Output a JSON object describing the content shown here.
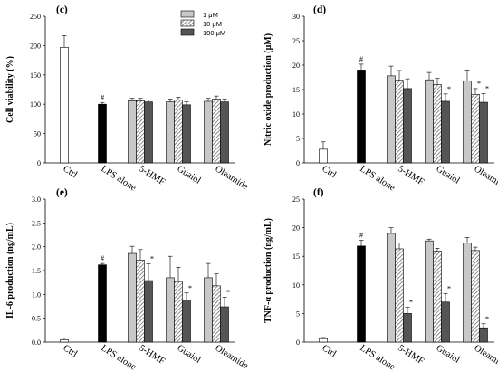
{
  "legend": {
    "items": [
      {
        "key": "low",
        "label": "1 μM"
      },
      {
        "key": "mid",
        "label": "10 μM"
      },
      {
        "key": "high",
        "label": "100 μM"
      }
    ]
  },
  "colors": {
    "ctrl": "#ffffff",
    "lps": "#000000",
    "low": "#c8c8c8",
    "mid_hatch": "#6e6e6e",
    "high": "#555555"
  },
  "chart_data": [
    {
      "type": "bar",
      "panel_label": "(c)",
      "ylabel": "Cell viability (%)",
      "ylim": [
        0,
        250
      ],
      "yticks": [
        0,
        50,
        100,
        150,
        200,
        250
      ],
      "ytick_labels": [
        "0",
        "50",
        "100",
        "150",
        "200",
        "250"
      ],
      "categories": [
        "Ctrl",
        "LPS alone",
        "5-HMF",
        "Guaiol",
        "Oleamide"
      ],
      "single": [
        {
          "category": "Ctrl",
          "value": 197,
          "err": 20,
          "style": "ctrl",
          "mark": ""
        },
        {
          "category": "LPS alone",
          "value": 100,
          "err": 3,
          "style": "lps",
          "mark": "#"
        }
      ],
      "groups": [
        {
          "category": "5-HMF",
          "values": [
            106,
            106,
            104
          ],
          "errs": [
            4,
            4,
            3
          ],
          "marks": [
            "",
            "",
            ""
          ]
        },
        {
          "category": "Guaiol",
          "values": [
            104,
            107,
            99
          ],
          "errs": [
            5,
            5,
            5
          ],
          "marks": [
            "",
            "",
            ""
          ]
        },
        {
          "category": "Oleamide",
          "values": [
            105,
            109,
            104
          ],
          "errs": [
            5,
            5,
            5
          ],
          "marks": [
            "",
            "",
            ""
          ]
        }
      ]
    },
    {
      "type": "bar",
      "panel_label": "(d)",
      "ylabel": "Nitric oxide production (μM)",
      "ylim": [
        0,
        30
      ],
      "yticks": [
        0,
        5,
        10,
        15,
        20,
        25,
        30
      ],
      "ytick_labels": [
        "0",
        "5",
        "10",
        "15",
        "20",
        "25",
        "30"
      ],
      "categories": [
        "Ctrl",
        "LPS alone",
        "5-HMF",
        "Guaiol",
        "Oleamide"
      ],
      "single": [
        {
          "category": "Ctrl",
          "value": 2.8,
          "err": 1.5,
          "style": "ctrl",
          "mark": ""
        },
        {
          "category": "LPS alone",
          "value": 19,
          "err": 1.2,
          "style": "lps",
          "mark": "#"
        }
      ],
      "groups": [
        {
          "category": "5-HMF",
          "values": [
            17.8,
            16.9,
            15.2
          ],
          "errs": [
            2,
            2,
            2
          ],
          "marks": [
            "",
            "",
            ""
          ]
        },
        {
          "category": "Guaiol",
          "values": [
            17,
            16,
            12.6
          ],
          "errs": [
            1.5,
            1.3,
            1.5
          ],
          "marks": [
            "",
            "",
            "*"
          ]
        },
        {
          "category": "Oleamide",
          "values": [
            16.8,
            14,
            12.4
          ],
          "errs": [
            2.2,
            1.2,
            1.8
          ],
          "marks": [
            "",
            "*",
            "*"
          ]
        }
      ]
    },
    {
      "type": "bar",
      "panel_label": "(e)",
      "ylabel": "IL-6 production (ng/mL)",
      "ylim": [
        0,
        3
      ],
      "yticks": [
        0,
        0.5,
        1,
        1.5,
        2,
        2.5,
        3
      ],
      "ytick_labels": [
        "0.0",
        "0.5",
        "1.0",
        "1.5",
        "2.0",
        "2.5",
        "3.0"
      ],
      "categories": [
        "Ctrl",
        "LPS alone",
        "5-HMF",
        "Guaiol",
        "Oleamide"
      ],
      "single": [
        {
          "category": "Ctrl",
          "value": 0.05,
          "err": 0.03,
          "style": "ctrl",
          "mark": ""
        },
        {
          "category": "LPS alone",
          "value": 1.62,
          "err": 0.03,
          "style": "lps",
          "mark": "#"
        }
      ],
      "groups": [
        {
          "category": "5-HMF",
          "values": [
            1.86,
            1.72,
            1.29
          ],
          "errs": [
            0.15,
            0.22,
            0.35
          ],
          "marks": [
            "",
            "",
            "*"
          ]
        },
        {
          "category": "Guaiol",
          "values": [
            1.35,
            1.27,
            0.88
          ],
          "errs": [
            0.45,
            0.3,
            0.15
          ],
          "marks": [
            "",
            "",
            "*"
          ]
        },
        {
          "category": "Oleamide",
          "values": [
            1.35,
            1.18,
            0.74
          ],
          "errs": [
            0.3,
            0.25,
            0.2
          ],
          "marks": [
            "",
            "",
            "*"
          ]
        }
      ]
    },
    {
      "type": "bar",
      "panel_label": "(f)",
      "ylabel": "TNF-α production (ng/mL)",
      "ylim": [
        0,
        25
      ],
      "yticks": [
        0,
        5,
        10,
        15,
        20,
        25
      ],
      "ytick_labels": [
        "0",
        "5",
        "10",
        "15",
        "20",
        "25"
      ],
      "categories": [
        "Ctrl",
        "LPS alone",
        "5-HMF",
        "Guaiol",
        "Oleamide"
      ],
      "single": [
        {
          "category": "Ctrl",
          "value": 0.6,
          "err": 0.2,
          "style": "ctrl",
          "mark": ""
        },
        {
          "category": "LPS alone",
          "value": 16.8,
          "err": 1,
          "style": "lps",
          "mark": "#"
        }
      ],
      "groups": [
        {
          "category": "5-HMF",
          "values": [
            19,
            16.3,
            5
          ],
          "errs": [
            1,
            1,
            1.1
          ],
          "marks": [
            "",
            "",
            "*"
          ]
        },
        {
          "category": "Guaiol",
          "values": [
            17.7,
            15.9,
            7
          ],
          "errs": [
            0.3,
            0.5,
            1.5
          ],
          "marks": [
            "",
            "",
            "*"
          ]
        },
        {
          "category": "Oleamide",
          "values": [
            17.3,
            16,
            2.5
          ],
          "errs": [
            1,
            0.6,
            0.7
          ],
          "marks": [
            "",
            "",
            "*"
          ]
        }
      ]
    }
  ]
}
